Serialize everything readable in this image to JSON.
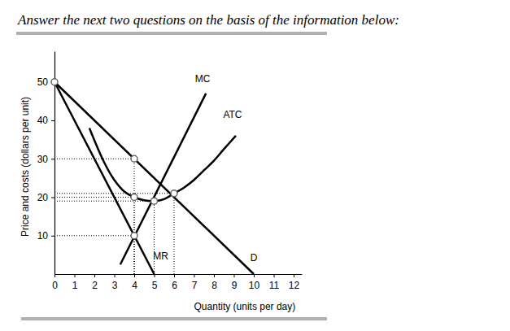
{
  "chart_data": {
    "type": "line",
    "title": "Answer the next two questions on the basis of the information below:",
    "x_label": "Quantity (units per day)",
    "y_label": "Price and costs (dollars per unit)",
    "xlim": [
      0,
      12.4
    ],
    "ylim": [
      0,
      58
    ],
    "xticks": [
      0,
      1,
      2,
      3,
      4,
      5,
      6,
      7,
      8,
      9,
      10,
      11,
      12
    ],
    "yticks": [
      10,
      20,
      30,
      40,
      50
    ],
    "series": [
      {
        "name": "D",
        "color": "#000000",
        "x": [
          0,
          10
        ],
        "values": [
          50,
          0
        ]
      },
      {
        "name": "MR",
        "color": "#000000",
        "x": [
          0,
          5
        ],
        "values": [
          50,
          0
        ]
      },
      {
        "name": "MC",
        "color": "#000000",
        "x": [
          3.3,
          7.6
        ],
        "values": [
          2.5,
          47
        ]
      },
      {
        "name": "ATC",
        "color": "#000000",
        "x": [
          1.75,
          2.5,
          3,
          3.5,
          4,
          4.5,
          5,
          5.5,
          6,
          6.5,
          7,
          7.5,
          8,
          8.5,
          9.1
        ],
        "values": [
          38,
          29,
          24.5,
          21.5,
          20,
          19.2,
          19,
          19.5,
          21,
          22.5,
          24.5,
          27,
          29.5,
          32.5,
          36
        ]
      }
    ],
    "points": [
      {
        "x": 0,
        "y": 50
      },
      {
        "x": 4,
        "y": 30
      },
      {
        "x": 4,
        "y": 20
      },
      {
        "x": 4,
        "y": 10
      },
      {
        "x": 5,
        "y": 19
      },
      {
        "x": 6,
        "y": 21
      }
    ]
  }
}
